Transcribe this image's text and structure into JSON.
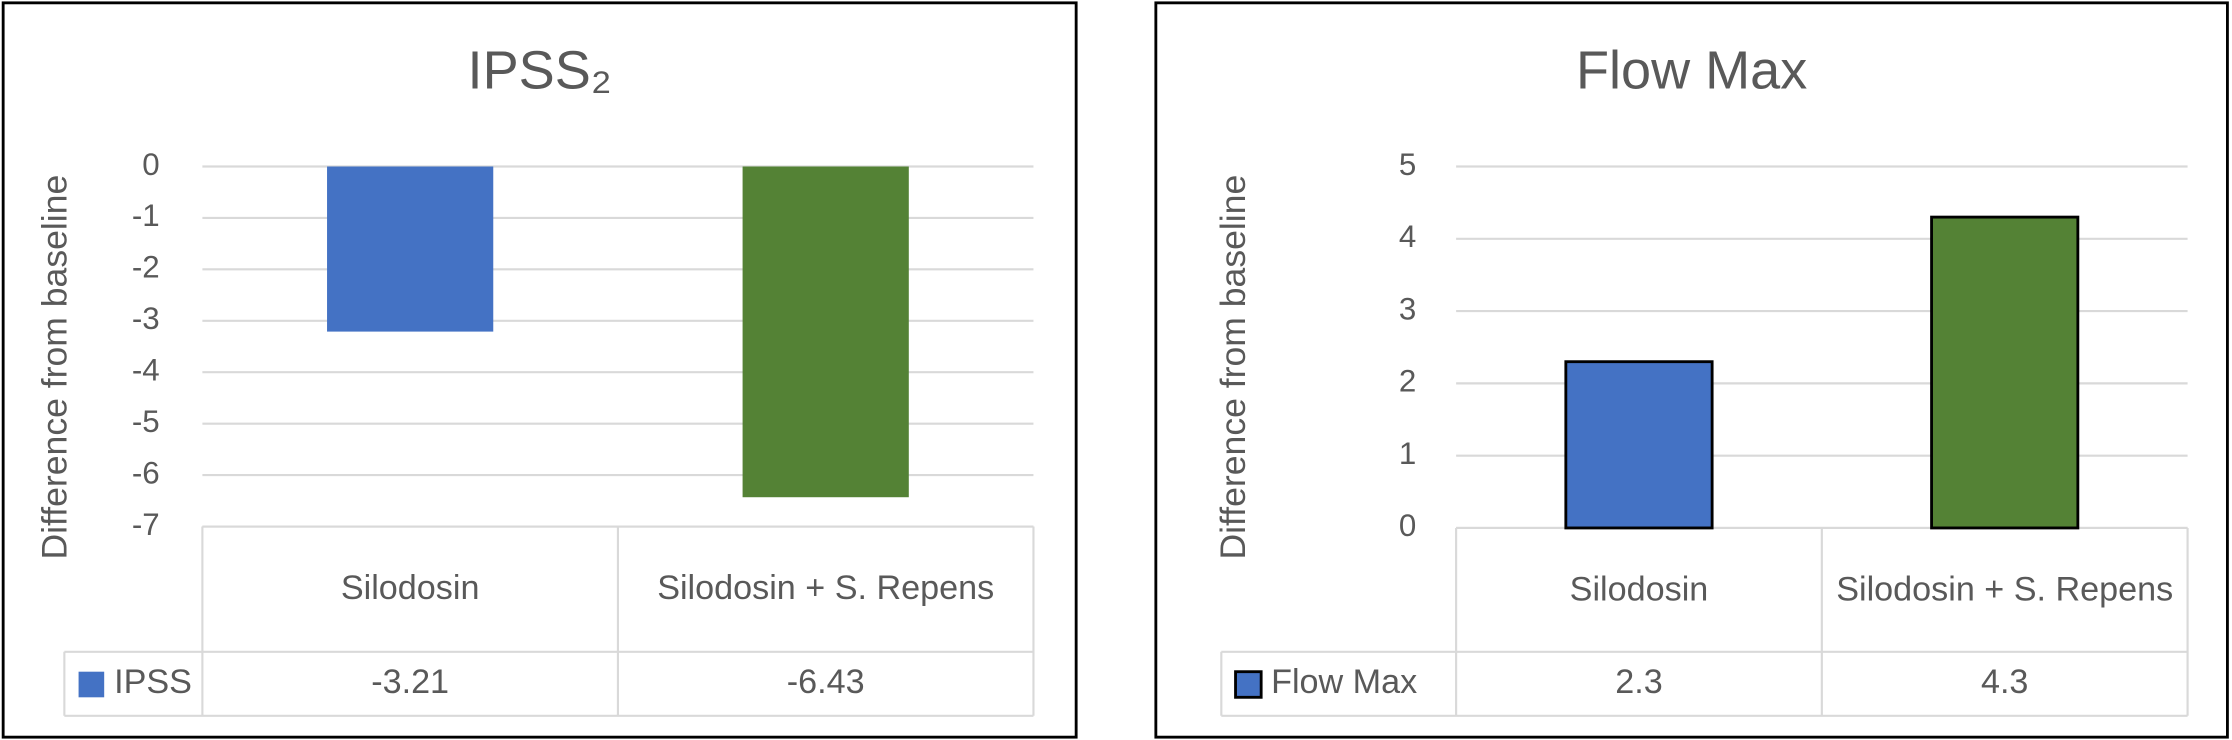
{
  "chart_data": [
    {
      "type": "bar",
      "title": "IPSS₂",
      "y_label": "Difference from baseline",
      "categories": [
        "Silodosin",
        "Silodosin + S. Repens"
      ],
      "series": [
        {
          "name": "IPSS",
          "color": "#4472c4",
          "values": [
            -3.21,
            -6.43
          ]
        }
      ],
      "ylim": [
        -7,
        0
      ],
      "yticks": [
        0,
        -1,
        -2,
        -3,
        -4,
        -5,
        -6,
        -7
      ],
      "grid": true,
      "data_table": true
    },
    {
      "type": "bar",
      "title": "Flow Max",
      "y_label": "Difference from baseline",
      "categories": [
        "Silodosin",
        "Silodosin + S. Repens"
      ],
      "series": [
        {
          "name": "Flow Max",
          "color": "#4472c4",
          "point_colors": [
            "#4472c4",
            "#548235"
          ],
          "values": [
            2.3,
            4.3
          ]
        }
      ],
      "edgecolor": "#000000",
      "ylim": [
        0,
        5
      ],
      "yticks": [
        0,
        1,
        2,
        3,
        4,
        5
      ],
      "grid": true,
      "data_table": true
    }
  ]
}
